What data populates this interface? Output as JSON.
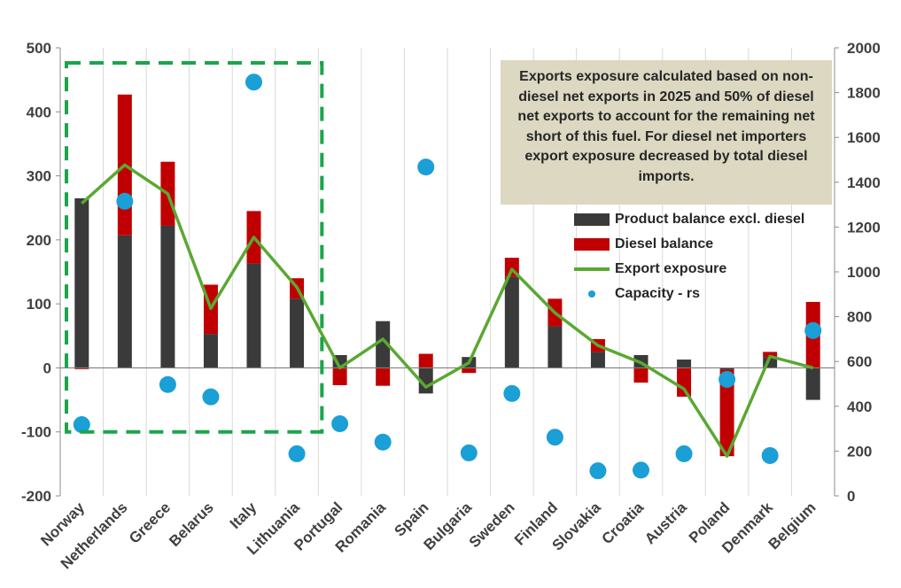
{
  "chart_data": {
    "type": "bar",
    "stacked": true,
    "categories": [
      "Norway",
      "Netherlands",
      "Greece",
      "Belarus",
      "Italy",
      "Lithuania",
      "Portugal",
      "Romania",
      "Spain",
      "Bulgaria",
      "Sweden",
      "Finland",
      "Slovakia",
      "Croatia",
      "Austria",
      "Poland",
      "Denmark",
      "Belgium"
    ],
    "series": [
      {
        "name": "Product balance excl. diesel",
        "kind": "bar",
        "axis": "left",
        "color": "#3a3a3a",
        "values": [
          265,
          207,
          222,
          53,
          163,
          108,
          20,
          73,
          -40,
          17,
          142,
          65,
          25,
          20,
          13,
          -3,
          17,
          -50
        ]
      },
      {
        "name": "Diesel balance",
        "kind": "bar",
        "axis": "left",
        "color": "#c00000",
        "values": [
          -2,
          220,
          100,
          77,
          82,
          32,
          -27,
          -28,
          22,
          -8,
          30,
          43,
          20,
          -23,
          -45,
          -135,
          8,
          103
        ]
      },
      {
        "name": "Export exposure",
        "kind": "line",
        "axis": "left",
        "color": "#5aa832",
        "values": [
          257,
          317,
          272,
          93,
          204,
          126,
          0,
          45,
          -30,
          8,
          154,
          86,
          35,
          8,
          -33,
          -138,
          18,
          0
        ]
      },
      {
        "name": "Capacity - rs",
        "kind": "scatter",
        "axis": "right",
        "color": "#1a9fd6",
        "values": [
          318,
          1315,
          497,
          442,
          1847,
          188,
          322,
          240,
          1468,
          192,
          457,
          262,
          112,
          115,
          188,
          520,
          180,
          738
        ]
      }
    ],
    "left_axis": {
      "min": -200,
      "max": 500,
      "step": 100,
      "ticks": [
        "-200",
        "-100",
        "0",
        "100",
        "200",
        "300",
        "400",
        "500"
      ]
    },
    "right_axis": {
      "min": 0,
      "max": 2000,
      "step": 200,
      "ticks": [
        "0",
        "200",
        "400",
        "600",
        "800",
        "1000",
        "1200",
        "1400",
        "1600",
        "1800",
        "2000"
      ]
    },
    "annotation": "Exports exposure calculated based on non-diesel net exports in 2025 and 50% of diesel net exports to account for the remaining net short of this fuel. For diesel net importers export exposure decreased by total diesel imports.",
    "highlight_group": [
      "Norway",
      "Netherlands",
      "Greece",
      "Belarus",
      "Italy",
      "Lithuania"
    ],
    "legend_position": "top-right",
    "grid": "vertical"
  },
  "colors": {
    "dark_bar": "#3a3a3a",
    "red_bar": "#c00000",
    "line": "#5aa832",
    "dot": "#1a9fd6",
    "highlight_box": "#1aa64a",
    "note_bg": "#dcd8c1"
  }
}
